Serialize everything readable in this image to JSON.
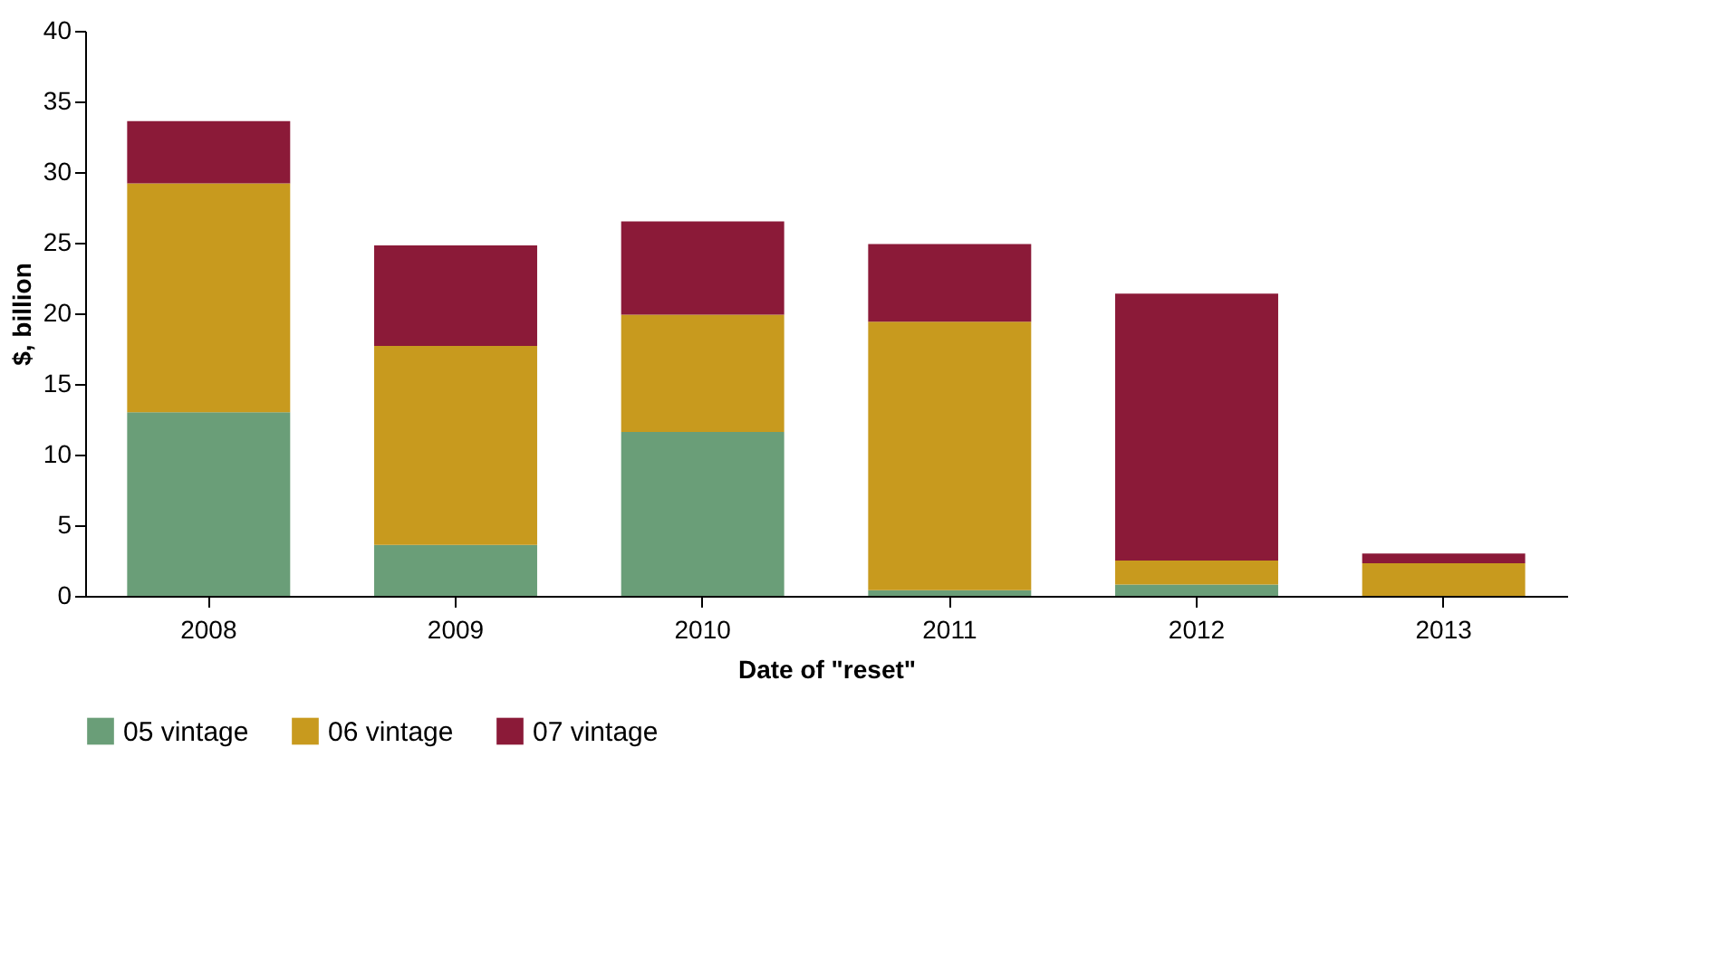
{
  "chart_data": {
    "type": "bar",
    "stacked": true,
    "xlabel": "Date of \"reset\"",
    "ylabel": "$, billion",
    "categories": [
      "2008",
      "2009",
      "2010",
      "2011",
      "2012",
      "2013"
    ],
    "series": [
      {
        "name": "05 vintage",
        "color": "#6a9e78",
        "values": [
          13.0,
          3.6,
          11.6,
          0.4,
          0.8,
          0
        ]
      },
      {
        "name": "06 vintage",
        "color": "#c89a1e",
        "values": [
          16.2,
          14.1,
          8.3,
          19.0,
          1.7,
          2.3
        ]
      },
      {
        "name": "07 vintage",
        "color": "#8b1a38",
        "values": [
          4.4,
          7.1,
          6.6,
          5.5,
          18.9,
          0.7
        ]
      }
    ],
    "ylim": [
      0,
      40
    ],
    "yticks": [
      0,
      5,
      10,
      15,
      20,
      25,
      30,
      35,
      40
    ],
    "grid": false,
    "legend": "bottom"
  }
}
